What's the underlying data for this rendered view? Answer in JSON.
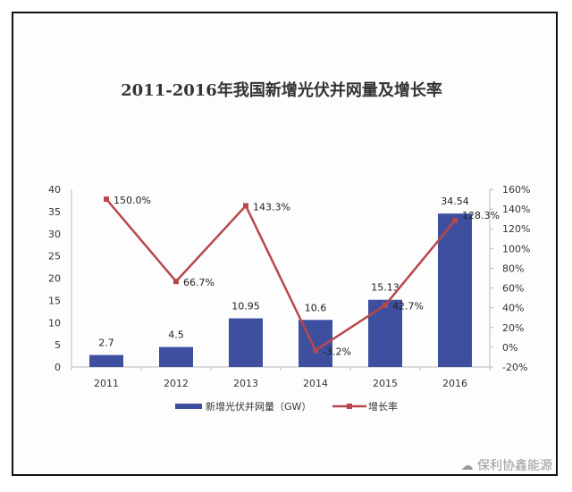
{
  "chart_data": {
    "type": "bar+line",
    "title": "2011-2016年我国新增光伏并网量及增长率",
    "categories": [
      "2011",
      "2012",
      "2013",
      "2014",
      "2015",
      "2016"
    ],
    "series": [
      {
        "name": "新增光伏并网量（GW）",
        "type": "bar",
        "axis": "left",
        "color": "#3f4fa0",
        "values": [
          2.7,
          4.5,
          10.95,
          10.6,
          15.13,
          34.54
        ],
        "labels": [
          "2.7",
          "4.5",
          "10.95",
          "10.6",
          "15.13",
          "34.54"
        ]
      },
      {
        "name": "增长率",
        "type": "line",
        "axis": "right",
        "color": "#b8474a",
        "values": [
          150.0,
          66.7,
          143.3,
          -3.2,
          42.7,
          128.3
        ],
        "labels": [
          "150.0%",
          "66.7%",
          "143.3%",
          "-3.2%",
          "42.7%",
          "128.3%"
        ]
      }
    ],
    "y_left": {
      "range": [
        0,
        40
      ],
      "ticks": [
        "0",
        "5",
        "10",
        "15",
        "20",
        "25",
        "30",
        "35",
        "40"
      ]
    },
    "y_right": {
      "range": [
        -20,
        160
      ],
      "ticks": [
        "-20%",
        "0%",
        "20%",
        "40%",
        "60%",
        "80%",
        "100%",
        "120%",
        "140%",
        "160%"
      ]
    },
    "legend_position": "bottom",
    "grid": false
  },
  "watermark": "保利协鑫能源"
}
